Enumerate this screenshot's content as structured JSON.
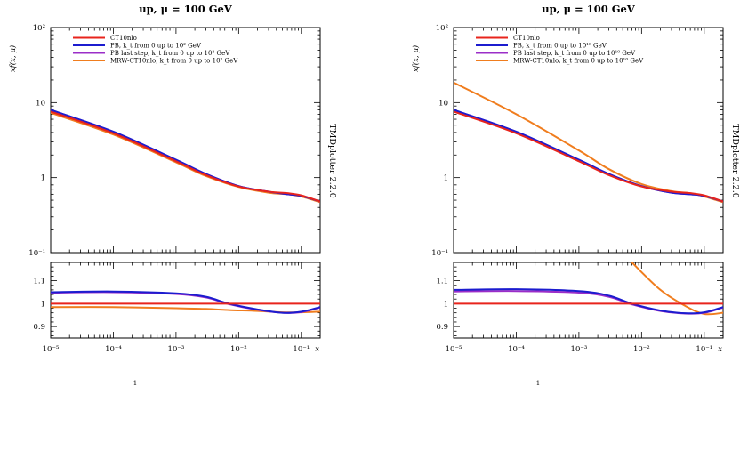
{
  "panel_titles": [
    "up, μ = 100 GeV",
    "up, μ = 100 GeV"
  ],
  "ylabel": "xf(x, μ)",
  "xlabel_right": "x",
  "side_label": "TMDplotter 2.2.0",
  "footnote": "1",
  "main_y_ticks": [
    "10⁻¹",
    "1",
    "10",
    "10²"
  ],
  "ratio_y_ticks": [
    "0.9",
    "1",
    "1.1"
  ],
  "x_ticks": [
    "10⁻⁵",
    "10⁻⁴",
    "10⁻³",
    "10⁻²",
    "10⁻¹"
  ],
  "colors": {
    "red": "#e8241c",
    "blue": "#1c1ccf",
    "purple": "#9b2ec8",
    "orange": "#f07d1e"
  },
  "chart_data": [
    {
      "type": "line",
      "title": "up, μ = 100 GeV",
      "xlabel": "x",
      "ylabel": "xf(x, μ)",
      "xscale": "log",
      "yscale": "log",
      "xlim": [
        1e-05,
        0.2
      ],
      "ylim": [
        0.1,
        100
      ],
      "legend_position": "top-left",
      "x": [
        1e-05,
        0.0001,
        0.001,
        0.003,
        0.01,
        0.03,
        0.06,
        0.1,
        0.2
      ],
      "series": [
        {
          "name": "CT10nlo",
          "color": "#e8241c",
          "values": [
            7.6,
            3.9,
            1.65,
            1.08,
            0.76,
            0.65,
            0.62,
            0.58,
            0.48
          ]
        },
        {
          "name": "PB, k_t from 0 up to 10² GeV",
          "color": "#1c1ccf",
          "values": [
            8.0,
            4.1,
            1.73,
            1.12,
            0.77,
            0.65,
            0.6,
            0.57,
            0.48
          ]
        },
        {
          "name": "PB last step, k_t from 0 up to 10² GeV",
          "color": "#9b2ec8",
          "values": [
            7.95,
            4.08,
            1.72,
            1.12,
            0.77,
            0.65,
            0.6,
            0.57,
            0.48
          ]
        },
        {
          "name": "MRW-CT10nlo, k_t from 0 up to 10² GeV",
          "color": "#f07d1e",
          "values": [
            7.3,
            3.75,
            1.6,
            1.05,
            0.75,
            0.63,
            0.6,
            0.56,
            0.47
          ]
        }
      ],
      "ratio": {
        "ylim": [
          0.85,
          1.18
        ],
        "x": [
          1e-05,
          0.0001,
          0.001,
          0.003,
          0.007,
          0.02,
          0.05,
          0.1,
          0.2
        ],
        "series": [
          {
            "name": "CT10nlo",
            "color": "#e8241c",
            "values": [
              1.0,
              1.0,
              1.0,
              1.0,
              1.0,
              1.0,
              1.0,
              1.0,
              1.0
            ]
          },
          {
            "name": "PB",
            "color": "#1c1ccf",
            "values": [
              1.05,
              1.053,
              1.045,
              1.03,
              1.0,
              0.975,
              0.96,
              0.965,
              0.985
            ]
          },
          {
            "name": "PB last step",
            "color": "#9b2ec8",
            "values": [
              1.048,
              1.05,
              1.042,
              1.027,
              0.998,
              0.973,
              0.96,
              0.963,
              0.983
            ]
          },
          {
            "name": "MRW-CT10nlo",
            "color": "#f07d1e",
            "values": [
              0.985,
              0.985,
              0.98,
              0.977,
              0.972,
              0.968,
              0.962,
              0.962,
              0.965
            ]
          }
        ]
      }
    },
    {
      "type": "line",
      "title": "up, μ = 100 GeV",
      "xlabel": "x",
      "ylabel": "xf(x, μ)",
      "xscale": "log",
      "yscale": "log",
      "xlim": [
        1e-05,
        0.2
      ],
      "ylim": [
        0.1,
        100
      ],
      "legend_position": "top-left",
      "x": [
        1e-05,
        0.0001,
        0.001,
        0.003,
        0.01,
        0.03,
        0.06,
        0.1,
        0.2
      ],
      "series": [
        {
          "name": "CT10nlo",
          "color": "#e8241c",
          "values": [
            7.6,
            3.9,
            1.65,
            1.08,
            0.76,
            0.65,
            0.62,
            0.58,
            0.48
          ]
        },
        {
          "name": "PB, k_t from 0 up to 10¹⁰ GeV",
          "color": "#1c1ccf",
          "values": [
            8.0,
            4.1,
            1.73,
            1.12,
            0.77,
            0.63,
            0.6,
            0.57,
            0.48
          ]
        },
        {
          "name": "PB last step, k_t from 0 up to 10¹⁰ GeV",
          "color": "#9b2ec8",
          "values": [
            7.95,
            4.08,
            1.72,
            1.12,
            0.77,
            0.63,
            0.6,
            0.57,
            0.48
          ]
        },
        {
          "name": "MRW-CT10nlo, k_t from 0 up to 10¹⁰ GeV",
          "color": "#f07d1e",
          "values": [
            18.5,
            7.0,
            2.3,
            1.3,
            0.82,
            0.66,
            0.62,
            0.56,
            0.47
          ]
        }
      ],
      "ratio": {
        "ylim": [
          0.85,
          1.18
        ],
        "x": [
          1e-05,
          0.0001,
          0.001,
          0.003,
          0.007,
          0.02,
          0.05,
          0.1,
          0.2
        ],
        "series": [
          {
            "name": "CT10nlo",
            "color": "#e8241c",
            "values": [
              1.0,
              1.0,
              1.0,
              1.0,
              1.0,
              1.0,
              1.0,
              1.0,
              1.0
            ]
          },
          {
            "name": "PB",
            "color": "#1c1ccf",
            "values": [
              1.06,
              1.063,
              1.055,
              1.035,
              1.0,
              0.97,
              0.958,
              0.962,
              0.985
            ]
          },
          {
            "name": "PB last step",
            "color": "#9b2ec8",
            "values": [
              1.053,
              1.055,
              1.048,
              1.03,
              0.997,
              0.968,
              0.957,
              0.96,
              0.983
            ]
          },
          {
            "name": "MRW-CT10nlo",
            "color": "#f07d1e",
            "values": [
              null,
              null,
              null,
              null,
              1.18,
              1.06,
              0.99,
              0.955,
              0.96
            ]
          }
        ]
      }
    }
  ]
}
